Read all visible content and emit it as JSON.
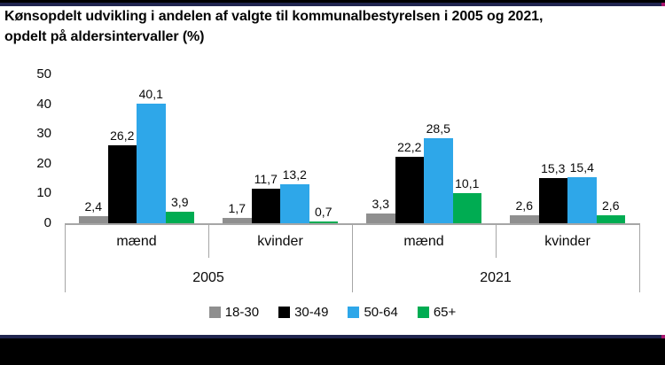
{
  "title": {
    "lines": [
      "Kønsopdelt udvikling i andelen af valgte til kommunalbestyrelsen i 2005 og 2021,",
      "opdelt på aldersintervaller (%)"
    ]
  },
  "chart_data": {
    "type": "bar",
    "title": "Kønsopdelt udvikling i andelen af valgte til kommunalbestyrelsen i 2005 og 2021, opdelt på aldersintervaller (%)",
    "xlabel": "",
    "ylabel": "",
    "ylim": [
      0,
      50
    ],
    "yticks": [
      0,
      10,
      20,
      30,
      40,
      50
    ],
    "grid": false,
    "legend_position": "bottom",
    "categories": [
      "mænd",
      "kvinder",
      "mænd",
      "kvinder"
    ],
    "category_groups": [
      {
        "label": "2005",
        "start": 0,
        "end": 1
      },
      {
        "label": "2021",
        "start": 2,
        "end": 3
      }
    ],
    "series": [
      {
        "name": "18-30",
        "color": "#8f8f8f",
        "values": [
          2.4,
          1.7,
          3.3,
          2.6
        ]
      },
      {
        "name": "30-49",
        "color": "#000000",
        "values": [
          26.2,
          11.7,
          22.2,
          15.3
        ]
      },
      {
        "name": "50-64",
        "color": "#2ea7e9",
        "values": [
          40.1,
          13.2,
          28.5,
          15.4
        ]
      },
      {
        "name": "65+",
        "color": "#00ac52",
        "values": [
          3.9,
          0.7,
          10.1,
          2.6
        ]
      }
    ],
    "value_labels": [
      [
        "2,4",
        "26,2",
        "40,1",
        "3,9"
      ],
      [
        "1,7",
        "11,7",
        "13,2",
        "0,7"
      ],
      [
        "3,3",
        "22,2",
        "28,5",
        "10,1"
      ],
      [
        "2,6",
        "15,3",
        "15,4",
        "2,6"
      ]
    ]
  },
  "colors": {
    "frame_bar": "#000000",
    "divider_line": "#20254f",
    "divider_accent": "#a9166f",
    "axis_line": "#a6a6a6"
  }
}
